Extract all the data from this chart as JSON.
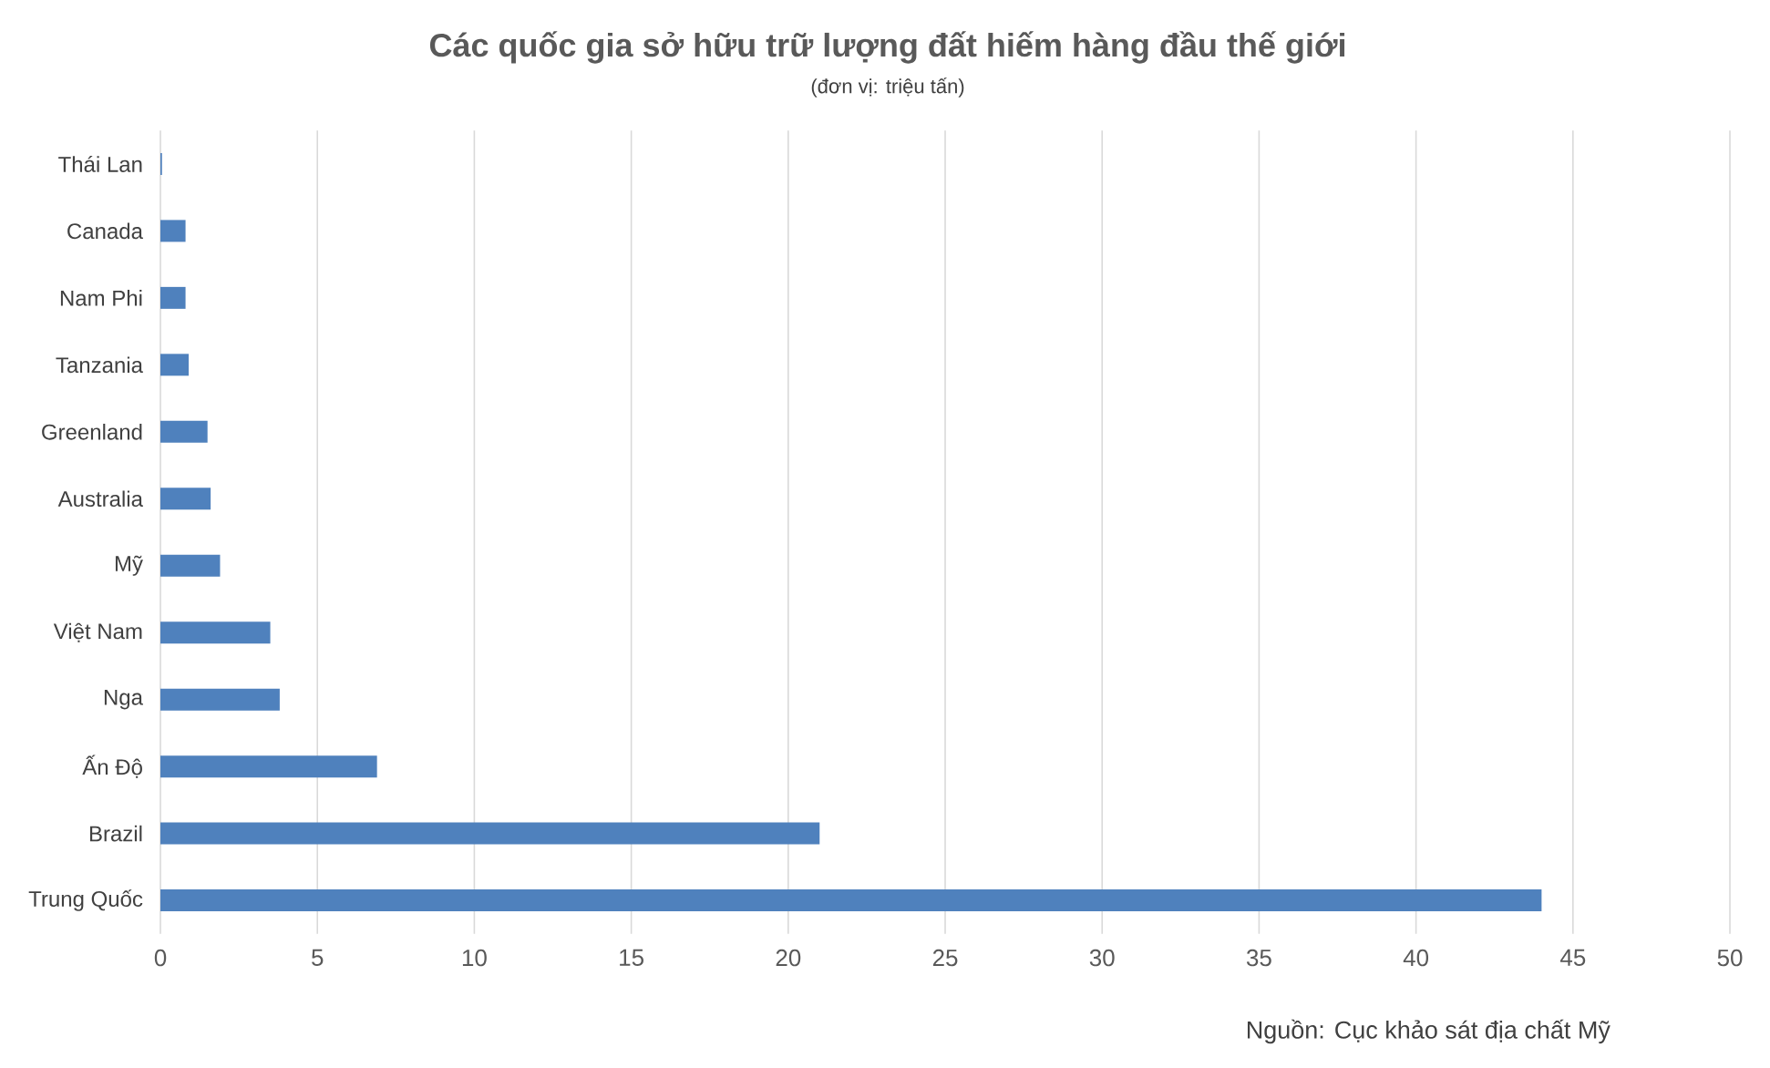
{
  "chart_data": {
    "type": "bar",
    "orientation": "horizontal",
    "title": "Các quốc gia sở hữu trữ lượng đất hiếm hàng đầu thế giới",
    "subtitle": "(đơn vị: triệu tấn)",
    "annotations": [
      "Nguồn: Cục khảo sát địa chất Mỹ"
    ],
    "categories": [
      "Thái Lan",
      "Canada",
      "Nam Phi",
      "Tanzania",
      "Greenland",
      "Australia",
      "Mỹ",
      "Việt Nam",
      "Nga",
      "Ấn Độ",
      "Brazil",
      "Trung Quốc"
    ],
    "values": [
      0.05,
      0.8,
      0.8,
      0.9,
      1.5,
      1.6,
      1.9,
      3.5,
      3.8,
      6.9,
      21,
      44
    ],
    "color": "#4f81bd",
    "xlim": [
      0,
      50
    ],
    "xticks": [
      0,
      5,
      10,
      15,
      20,
      25,
      30,
      35,
      40,
      45,
      50
    ],
    "grid": "x"
  }
}
